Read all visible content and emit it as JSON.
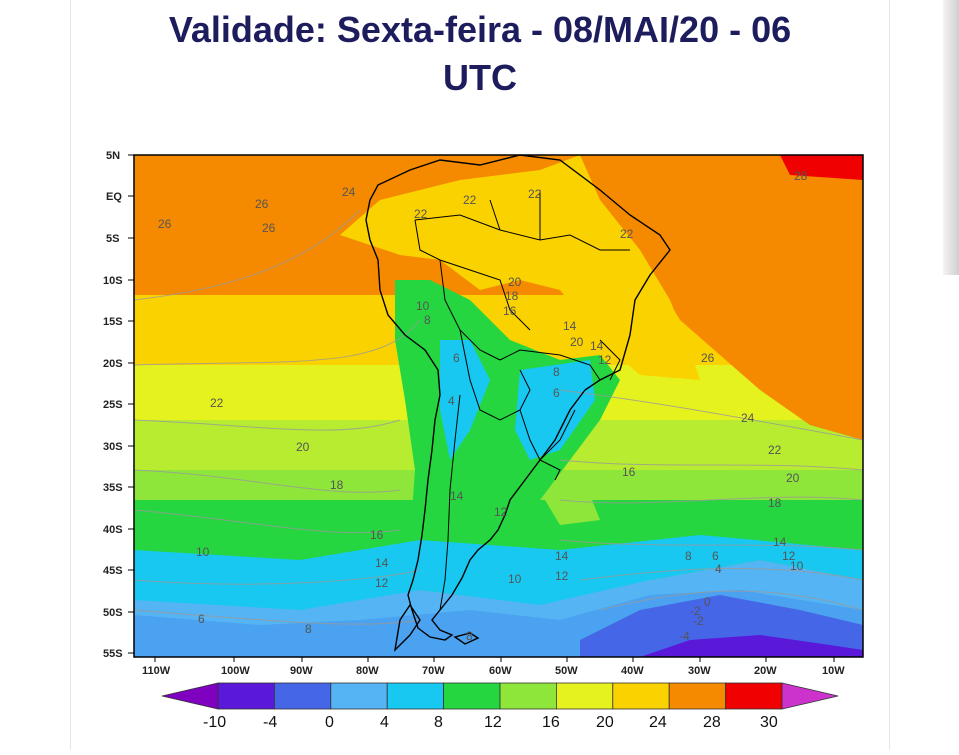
{
  "header": {
    "title_line1": "Validade: Sexta-feira - 08/MAI/20 - 06",
    "title_line2": "UTC"
  },
  "map": {
    "lat_labels": [
      "5N",
      "EQ",
      "5S",
      "10S",
      "15S",
      "20S",
      "25S",
      "30S",
      "35S",
      "40S",
      "45S",
      "50S",
      "55S"
    ],
    "lon_labels": [
      "110W",
      "100W",
      "90W",
      "80W",
      "70W",
      "60W",
      "50W",
      "40W",
      "30W",
      "20W",
      "10W"
    ],
    "contour_labels": [
      {
        "text": "26"
      },
      {
        "text": "26"
      },
      {
        "text": "26"
      },
      {
        "text": "24"
      },
      {
        "text": "22"
      },
      {
        "text": "22"
      },
      {
        "text": "22"
      },
      {
        "text": "22"
      },
      {
        "text": "20"
      },
      {
        "text": "18"
      },
      {
        "text": "16"
      },
      {
        "text": "28"
      },
      {
        "text": "10"
      },
      {
        "text": "8"
      },
      {
        "text": "6"
      },
      {
        "text": "4"
      },
      {
        "text": "14"
      },
      {
        "text": "20"
      },
      {
        "text": "26"
      },
      {
        "text": "22"
      },
      {
        "text": "20"
      },
      {
        "text": "18"
      },
      {
        "text": "16"
      },
      {
        "text": "24"
      },
      {
        "text": "22"
      },
      {
        "text": "20"
      },
      {
        "text": "18"
      },
      {
        "text": "14"
      },
      {
        "text": "12"
      },
      {
        "text": "16"
      },
      {
        "text": "14"
      },
      {
        "text": "12"
      },
      {
        "text": "10"
      },
      {
        "text": "14"
      },
      {
        "text": "12"
      },
      {
        "text": "8"
      },
      {
        "text": "6"
      },
      {
        "text": "4"
      },
      {
        "text": "10"
      },
      {
        "text": "14"
      },
      {
        "text": "12"
      },
      {
        "text": "10"
      },
      {
        "text": "14"
      },
      {
        "text": "12"
      },
      {
        "text": "6"
      },
      {
        "text": "8"
      },
      {
        "text": "-2"
      },
      {
        "text": "0"
      },
      {
        "text": "-4"
      },
      {
        "text": "-2"
      },
      {
        "text": "8"
      },
      {
        "text": "6"
      },
      {
        "text": "8"
      }
    ]
  },
  "legend": {
    "ticks": [
      "-10",
      "-4",
      "0",
      "4",
      "8",
      "12",
      "16",
      "20",
      "24",
      "28",
      "30"
    ],
    "colors": [
      "#8000c0",
      "#5a18d8",
      "#4666e8",
      "#55b4f4",
      "#18c8f0",
      "#26d640",
      "#8ee63a",
      "#e6f21e",
      "#fad200",
      "#f58a00",
      "#f00000",
      "#cc33cc"
    ]
  }
}
